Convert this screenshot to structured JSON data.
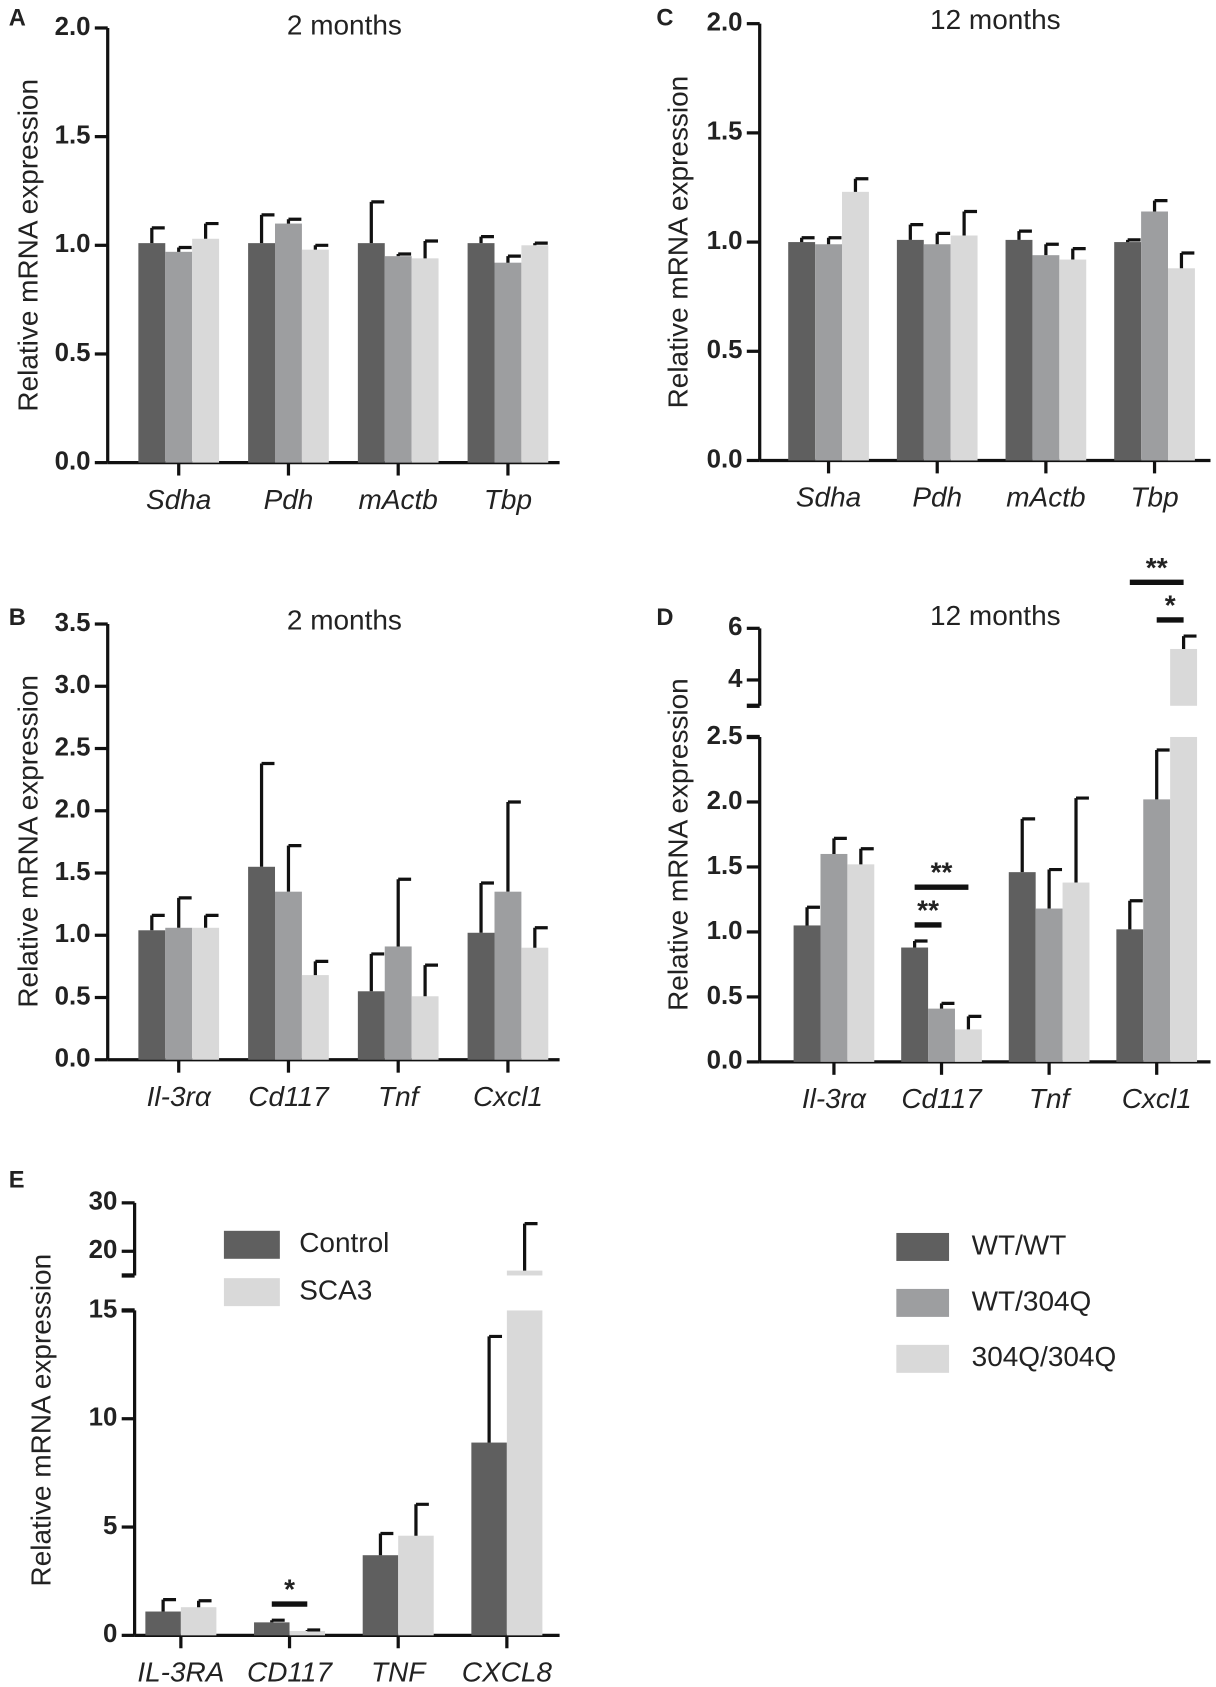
{
  "chart_data": [
    {
      "type": "bar",
      "panel": "A",
      "title": "2 months",
      "ylabel": "Relative mRNA expression",
      "categories": [
        "Sdha",
        "Pdh",
        "mActb",
        "Tbp"
      ],
      "series": [
        {
          "name": "WT/WT",
          "color": "#5f5f5f",
          "values": [
            1.01,
            1.01,
            1.01,
            1.01
          ],
          "errors": [
            0.07,
            0.13,
            0.19,
            0.03
          ]
        },
        {
          "name": "WT/304Q",
          "color": "#9d9ea0",
          "values": [
            0.97,
            1.1,
            0.95,
            0.92
          ],
          "errors": [
            0.02,
            0.02,
            0.01,
            0.03
          ]
        },
        {
          "name": "304Q/304Q",
          "color": "#d9d9d9",
          "values": [
            1.03,
            0.98,
            0.94,
            1.0
          ],
          "errors": [
            0.07,
            0.02,
            0.08,
            0.01
          ]
        }
      ],
      "ylim": [
        0,
        2
      ],
      "yticks": [
        {
          "value": 0,
          "label": "0.0"
        },
        {
          "value": 0.5,
          "label": "0.5"
        },
        {
          "value": 1,
          "label": "1.0"
        },
        {
          "value": 1.5,
          "label": "1.5"
        },
        {
          "value": 2,
          "label": "2.0"
        }
      ]
    },
    {
      "type": "bar",
      "panel": "C",
      "title": "12 months",
      "ylabel": "Relative mRNA expression",
      "categories": [
        "Sdha",
        "Pdh",
        "mActb",
        "Tbp"
      ],
      "series": [
        {
          "name": "WT/WT",
          "color": "#5f5f5f",
          "values": [
            1.0,
            1.01,
            1.01,
            1.0
          ],
          "errors": [
            0.02,
            0.07,
            0.04,
            0.01
          ]
        },
        {
          "name": "WT/304Q",
          "color": "#9d9ea0",
          "values": [
            0.99,
            0.99,
            0.94,
            1.14
          ],
          "errors": [
            0.03,
            0.05,
            0.05,
            0.05
          ]
        },
        {
          "name": "304Q/304Q",
          "color": "#d9d9d9",
          "values": [
            1.23,
            1.03,
            0.92,
            0.88
          ],
          "errors": [
            0.06,
            0.11,
            0.05,
            0.07
          ]
        }
      ],
      "ylim": [
        0,
        2
      ],
      "yticks": [
        {
          "value": 0,
          "label": "0.0"
        },
        {
          "value": 0.5,
          "label": "0.5"
        },
        {
          "value": 1,
          "label": "1.0"
        },
        {
          "value": 1.5,
          "label": "1.5"
        },
        {
          "value": 2,
          "label": "2.0"
        }
      ]
    },
    {
      "type": "bar",
      "panel": "B",
      "title": "2 months",
      "ylabel": "Relative mRNA expression",
      "categories": [
        "Il-3rα",
        "Cd117",
        "Tnf",
        "Cxcl1"
      ],
      "series": [
        {
          "name": "WT/WT",
          "color": "#5f5f5f",
          "values": [
            1.04,
            1.55,
            0.55,
            1.02
          ],
          "errors": [
            0.12,
            0.83,
            0.3,
            0.4
          ]
        },
        {
          "name": "WT/304Q",
          "color": "#9d9ea0",
          "values": [
            1.06,
            1.35,
            0.91,
            1.35
          ],
          "errors": [
            0.24,
            0.37,
            0.54,
            0.72
          ]
        },
        {
          "name": "304Q/304Q",
          "color": "#d9d9d9",
          "values": [
            1.06,
            0.68,
            0.51,
            0.9
          ],
          "errors": [
            0.1,
            0.11,
            0.25,
            0.16
          ]
        }
      ],
      "ylim": [
        0,
        3.5
      ],
      "yticks": [
        {
          "value": 0,
          "label": "0.0"
        },
        {
          "value": 0.5,
          "label": "0.5"
        },
        {
          "value": 1,
          "label": "1.0"
        },
        {
          "value": 1.5,
          "label": "1.5"
        },
        {
          "value": 2,
          "label": "2.0"
        },
        {
          "value": 2.5,
          "label": "2.5"
        },
        {
          "value": 3,
          "label": "3.0"
        },
        {
          "value": 3.5,
          "label": "3.5"
        }
      ]
    },
    {
      "type": "bar",
      "panel": "D",
      "title": "12 months",
      "ylabel": "Relative mRNA expression",
      "categories": [
        "Il-3rα",
        "Cd117",
        "Tnf",
        "Cxcl1"
      ],
      "series": [
        {
          "name": "WT/WT",
          "color": "#5f5f5f",
          "values": [
            1.05,
            0.88,
            1.46,
            1.02
          ],
          "errors": [
            0.14,
            0.05,
            0.41,
            0.22
          ]
        },
        {
          "name": "WT/304Q",
          "color": "#9d9ea0",
          "values": [
            1.6,
            0.41,
            1.18,
            2.02
          ],
          "errors": [
            0.12,
            0.04,
            0.3,
            0.38
          ]
        },
        {
          "name": "304Q/304Q",
          "color": "#d9d9d9",
          "values": [
            1.52,
            0.25,
            1.38,
            5.2
          ],
          "errors": [
            0.12,
            0.1,
            0.65,
            0.5
          ]
        }
      ],
      "ylim": [
        0,
        6
      ],
      "axis_break": [
        2.5,
        3
      ],
      "yticks": [
        {
          "value": 0,
          "label": "0.0"
        },
        {
          "value": 0.5,
          "label": "0.5"
        },
        {
          "value": 1,
          "label": "1.0"
        },
        {
          "value": 1.5,
          "label": "1.5"
        },
        {
          "value": 2,
          "label": "2.0"
        },
        {
          "value": 2.5,
          "label": "2.5"
        },
        4,
        6
      ],
      "annotations": [
        {
          "text": "**",
          "category": 1,
          "from": 0,
          "to": 1
        },
        {
          "text": "**",
          "category": 1,
          "from": 0,
          "to": 2
        },
        {
          "text": "*",
          "category": 3,
          "from": 1,
          "to": 2
        },
        {
          "text": "**",
          "category": 3,
          "from": 0,
          "to": 2
        }
      ]
    },
    {
      "type": "bar",
      "panel": "E",
      "ylabel": "Relative mRNA expression",
      "categories": [
        "IL-3RA",
        "CD117",
        "TNF",
        "CXCL8"
      ],
      "series": [
        {
          "name": "Control",
          "color": "#5f5f5f",
          "values": [
            1.1,
            0.6,
            3.7,
            8.9
          ],
          "errors": [
            0.55,
            0.1,
            1.0,
            4.9
          ]
        },
        {
          "name": "SCA3",
          "color": "#d9d9d9",
          "values": [
            1.3,
            0.2,
            4.6,
            16
          ],
          "errors": [
            0.3,
            0.05,
            1.45,
            9.7
          ]
        }
      ],
      "ylim": [
        0,
        30
      ],
      "axis_break": [
        15,
        15
      ],
      "yticks": [
        0,
        5,
        10,
        15,
        20,
        30
      ],
      "legend": "upper-left",
      "annotations": [
        {
          "text": "*",
          "category": 1,
          "from": 0,
          "to": 1
        }
      ]
    }
  ]
}
